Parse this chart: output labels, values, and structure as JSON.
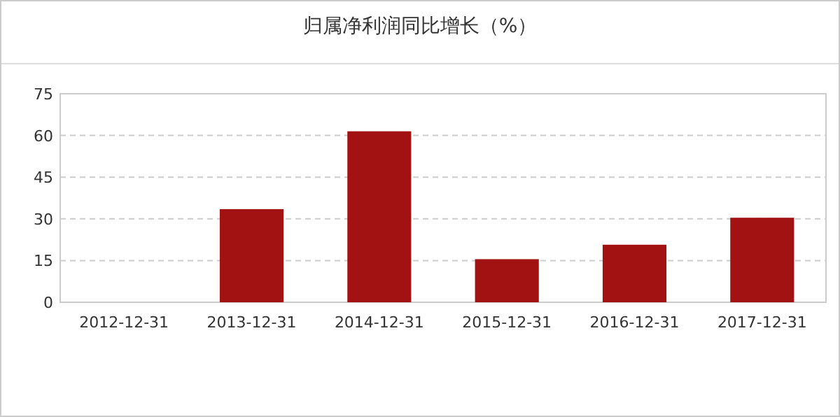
{
  "chart_data": {
    "type": "bar",
    "title": "归属净利润同比增长（%）",
    "categories": [
      "2012-12-31",
      "2013-12-31",
      "2014-12-31",
      "2015-12-31",
      "2016-12-31",
      "2017-12-31"
    ],
    "values": [
      null,
      33.5,
      61.5,
      15.5,
      20.7,
      30.4
    ],
    "color": "#a31212",
    "ylim": [
      0,
      75
    ],
    "yticks": [
      0,
      15,
      30,
      45,
      60,
      75
    ],
    "grid": "y"
  }
}
